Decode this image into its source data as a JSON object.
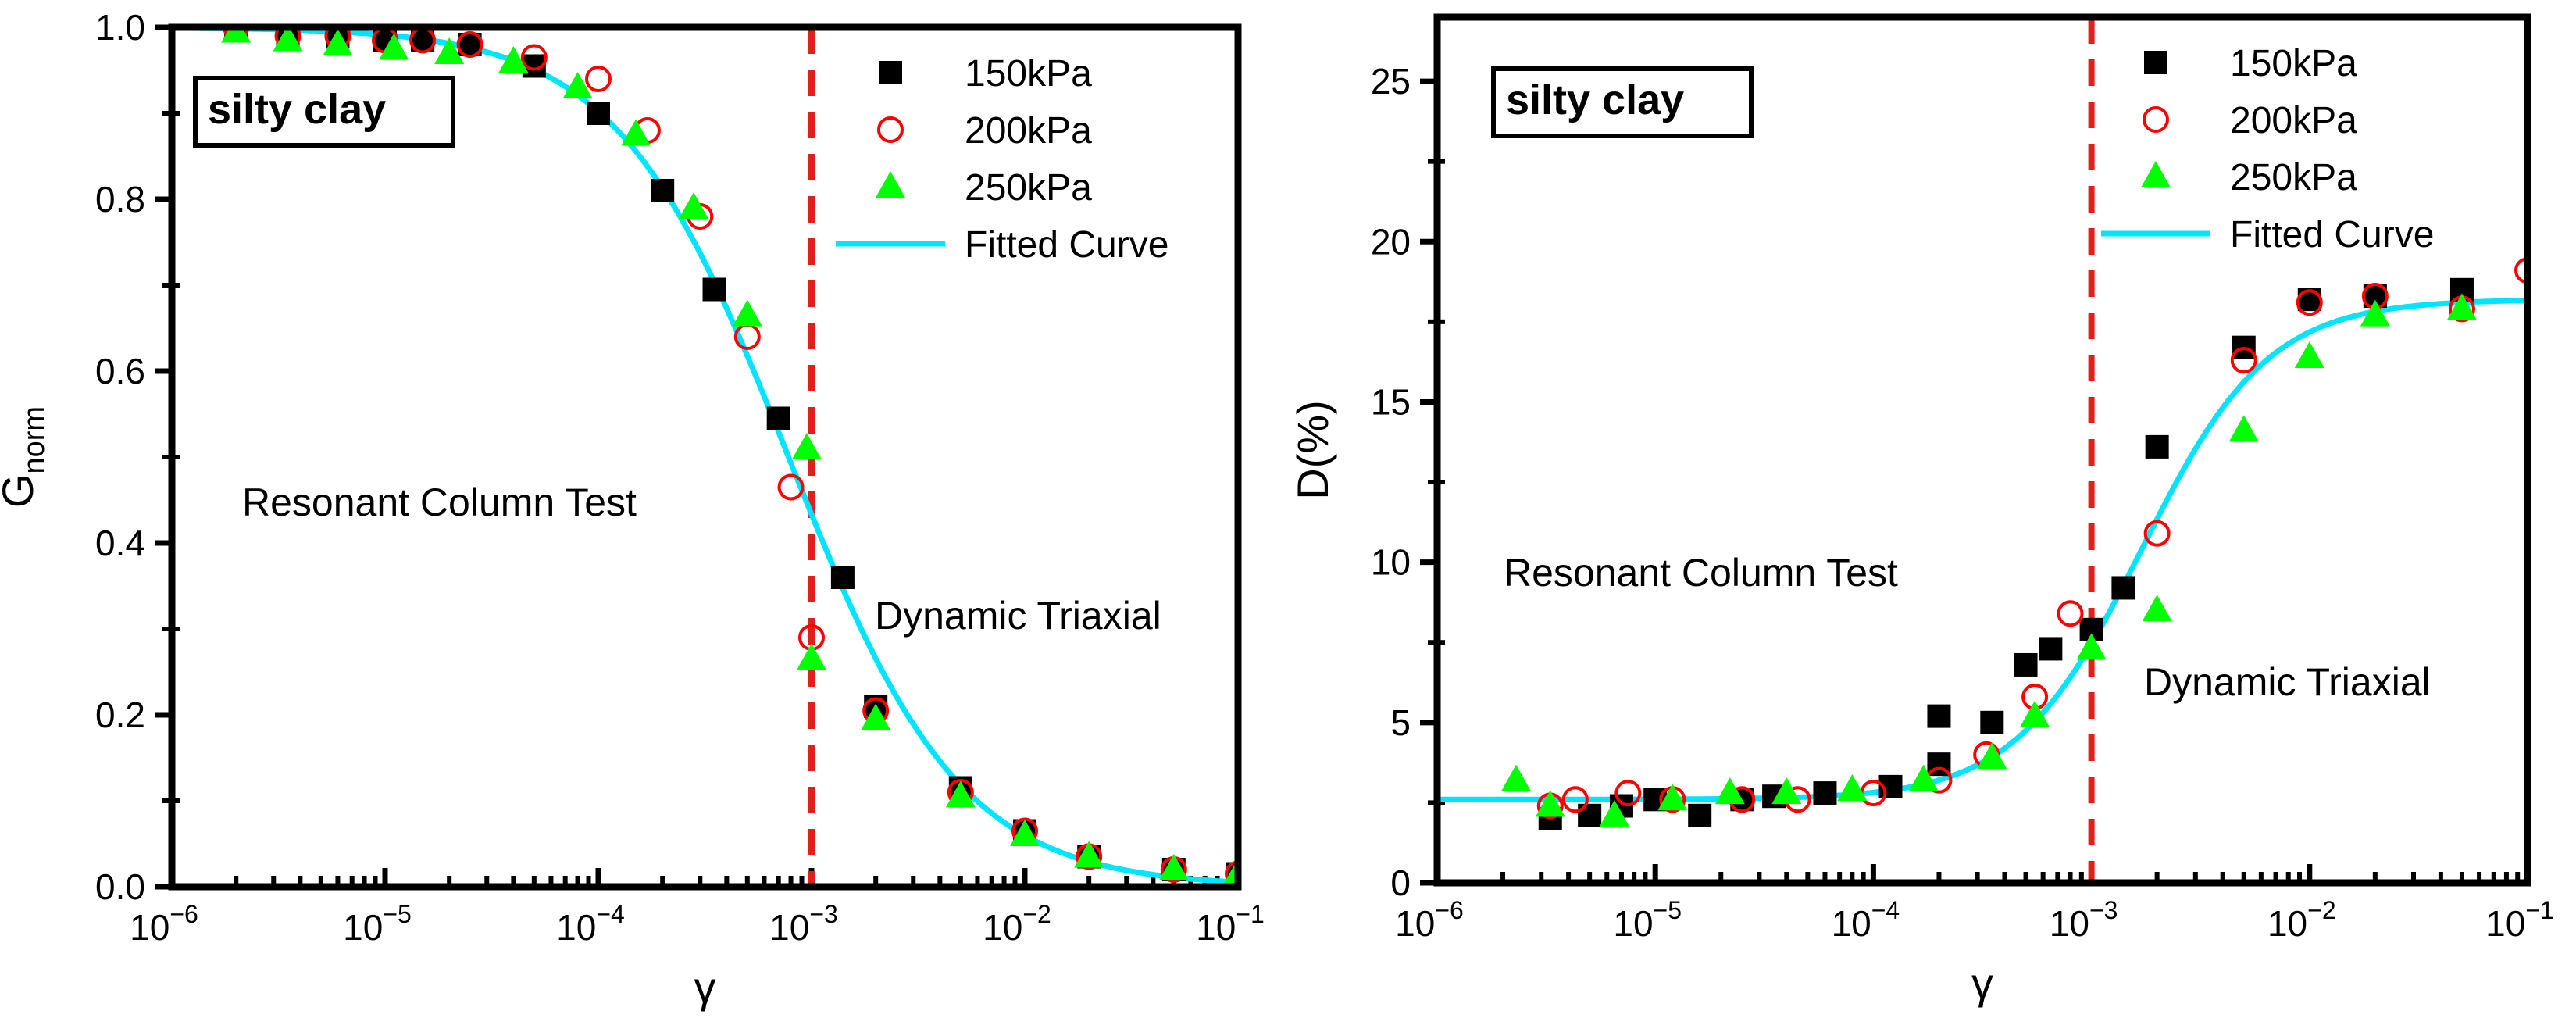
{
  "chart_data": [
    {
      "type": "scatter",
      "id": "g",
      "xlabel": "γ",
      "ylabel": "G",
      "ylabel_sub": "norm",
      "xscale": "log",
      "xlim": [
        1e-06,
        0.1
      ],
      "ylim": [
        0,
        1.0
      ],
      "xticks": [
        {
          "base": "10",
          "exp": "−6"
        },
        {
          "base": "10",
          "exp": "−5"
        },
        {
          "base": "10",
          "exp": "−4"
        },
        {
          "base": "10",
          "exp": "−3"
        },
        {
          "base": "10",
          "exp": "−2"
        },
        {
          "base": "10",
          "exp": "−1"
        }
      ],
      "yticks": [
        "0.0",
        "0.2",
        "0.4",
        "0.6",
        "0.8",
        "1.0"
      ],
      "ytick_values": [
        0,
        0.2,
        0.4,
        0.6,
        0.8,
        1.0
      ],
      "boxed_label": "silty clay",
      "annotations": {
        "left": "Resonant Column Test",
        "right": "Dynamic Triaxial"
      },
      "divider_x": 0.001,
      "legend": {
        "position": "top-right",
        "entries": [
          "150kPa",
          "200kPa",
          "250kPa",
          "Fitted Curve"
        ]
      },
      "series": [
        {
          "name": "150kPa",
          "marker": "square",
          "color": "#000000",
          "points": [
            [
              2e-06,
              1.0
            ],
            [
              3.5e-06,
              0.99
            ],
            [
              6e-06,
              0.99
            ],
            [
              1e-05,
              0.985
            ],
            [
              1.5e-05,
              0.985
            ],
            [
              2.5e-05,
              0.98
            ],
            [
              5e-05,
              0.955
            ],
            [
              0.0001,
              0.9
            ],
            [
              0.0002,
              0.81
            ],
            [
              0.00035,
              0.695
            ],
            [
              0.0007,
              0.545
            ],
            [
              0.0014,
              0.36
            ],
            [
              0.002,
              0.21
            ],
            [
              0.005,
              0.115
            ],
            [
              0.01,
              0.065
            ],
            [
              0.02,
              0.035
            ],
            [
              0.05,
              0.02
            ],
            [
              0.1,
              0.015
            ]
          ]
        },
        {
          "name": "200kPa",
          "marker": "circle",
          "color": "#ff0000",
          "points": [
            [
              2e-06,
              1.0
            ],
            [
              3.5e-06,
              0.99
            ],
            [
              6e-06,
              0.99
            ],
            [
              1e-05,
              0.985
            ],
            [
              1.5e-05,
              0.985
            ],
            [
              2.5e-05,
              0.98
            ],
            [
              5e-05,
              0.965
            ],
            [
              0.0001,
              0.94
            ],
            [
              0.00017,
              0.88
            ],
            [
              0.0003,
              0.78
            ],
            [
              0.0005,
              0.64
            ],
            [
              0.0008,
              0.465
            ],
            [
              0.001,
              0.29
            ],
            [
              0.002,
              0.205
            ],
            [
              0.005,
              0.11
            ],
            [
              0.01,
              0.065
            ],
            [
              0.02,
              0.035
            ],
            [
              0.05,
              0.02
            ],
            [
              0.1,
              0.015
            ]
          ]
        },
        {
          "name": "250kPa",
          "marker": "triangle",
          "color": "#00ff00",
          "points": [
            [
              2e-06,
              0.995
            ],
            [
              3.5e-06,
              0.985
            ],
            [
              6e-06,
              0.98
            ],
            [
              1.1e-05,
              0.975
            ],
            [
              2e-05,
              0.97
            ],
            [
              4e-05,
              0.96
            ],
            [
              8e-05,
              0.93
            ],
            [
              0.00015,
              0.875
            ],
            [
              0.00028,
              0.79
            ],
            [
              0.0005,
              0.665
            ],
            [
              0.00095,
              0.51
            ],
            [
              0.001,
              0.265
            ],
            [
              0.002,
              0.195
            ],
            [
              0.005,
              0.105
            ],
            [
              0.01,
              0.06
            ],
            [
              0.02,
              0.035
            ],
            [
              0.05,
              0.02
            ],
            [
              0.1,
              0.015
            ]
          ]
        },
        {
          "name": "Fitted Curve",
          "marker": "line",
          "color": "#00e5ff",
          "fit": {
            "model": "1/(1+(x/x0)^a)",
            "x0": 0.00078,
            "a": 1.08
          }
        }
      ]
    },
    {
      "type": "scatter",
      "id": "d",
      "xlabel": "γ",
      "ylabel": "D(%)",
      "xscale": "log",
      "xlim": [
        1e-06,
        0.1
      ],
      "ylim": [
        0,
        27
      ],
      "xticks": [
        {
          "base": "10",
          "exp": "−6"
        },
        {
          "base": "10",
          "exp": "−5"
        },
        {
          "base": "10",
          "exp": "−4"
        },
        {
          "base": "10",
          "exp": "−3"
        },
        {
          "base": "10",
          "exp": "−2"
        },
        {
          "base": "10",
          "exp": "−1"
        }
      ],
      "yticks": [
        "0",
        "5",
        "10",
        "15",
        "20",
        "25"
      ],
      "ytick_values": [
        0,
        5,
        10,
        15,
        20,
        25
      ],
      "boxed_label": "silty clay",
      "annotations": {
        "left": "Resonant Column Test",
        "right": "Dynamic Triaxial"
      },
      "divider_x": 0.001,
      "legend": {
        "position": "top-right",
        "entries": [
          "150kPa",
          "200kPa",
          "250kPa",
          "Fitted Curve"
        ]
      },
      "series": [
        {
          "name": "150kPa",
          "marker": "square",
          "color": "#000000",
          "points": [
            [
              3.3e-06,
              2.0
            ],
            [
              5e-06,
              2.1
            ],
            [
              7e-06,
              2.4
            ],
            [
              1e-05,
              2.6
            ],
            [
              1.6e-05,
              2.1
            ],
            [
              2.5e-05,
              2.6
            ],
            [
              3.5e-05,
              2.7
            ],
            [
              6e-05,
              2.8
            ],
            [
              0.00012,
              3.0
            ],
            [
              0.0002,
              3.7
            ],
            [
              0.0002,
              5.2
            ],
            [
              0.00035,
              5.0
            ],
            [
              0.0005,
              6.8
            ],
            [
              0.00065,
              7.3
            ],
            [
              0.001,
              7.9
            ],
            [
              0.0014,
              9.2
            ],
            [
              0.002,
              13.6
            ],
            [
              0.005,
              16.7
            ],
            [
              0.01,
              18.2
            ],
            [
              0.02,
              18.3
            ],
            [
              0.05,
              18.5
            ]
          ]
        },
        {
          "name": "200kPa",
          "marker": "circle",
          "color": "#ff0000",
          "points": [
            [
              3.3e-06,
              2.4
            ],
            [
              4.3e-06,
              2.6
            ],
            [
              7.5e-06,
              2.8
            ],
            [
              1.2e-05,
              2.6
            ],
            [
              2.5e-05,
              2.6
            ],
            [
              4.5e-05,
              2.6
            ],
            [
              0.0001,
              2.8
            ],
            [
              0.0002,
              3.2
            ],
            [
              0.00033,
              4.0
            ],
            [
              0.00055,
              5.8
            ],
            [
              0.0008,
              8.4
            ],
            [
              0.002,
              10.9
            ],
            [
              0.005,
              16.3
            ],
            [
              0.01,
              18.1
            ],
            [
              0.02,
              18.3
            ],
            [
              0.05,
              17.9
            ],
            [
              0.1,
              19.1
            ]
          ]
        },
        {
          "name": "250kPa",
          "marker": "triangle",
          "color": "#00ff00",
          "points": [
            [
              2.3e-06,
              3.2
            ],
            [
              3.3e-06,
              2.4
            ],
            [
              6.5e-06,
              2.1
            ],
            [
              1.2e-05,
              2.6
            ],
            [
              2.2e-05,
              2.8
            ],
            [
              4e-05,
              2.8
            ],
            [
              8e-05,
              2.9
            ],
            [
              0.00017,
              3.2
            ],
            [
              0.00035,
              3.9
            ],
            [
              0.00055,
              5.2
            ],
            [
              0.001,
              7.3
            ],
            [
              0.002,
              8.5
            ],
            [
              0.005,
              14.1
            ],
            [
              0.01,
              16.4
            ],
            [
              0.02,
              17.7
            ],
            [
              0.05,
              17.9
            ]
          ]
        },
        {
          "name": "Fitted Curve",
          "marker": "line",
          "color": "#00e5ff",
          "fit": {
            "model": "Dmin+(Dmax-Dmin)/(1+(x0/x)^a)",
            "Dmin": 2.6,
            "Dmax": 18.2,
            "x0": 0.0017,
            "a": 1.5
          }
        }
      ]
    }
  ]
}
